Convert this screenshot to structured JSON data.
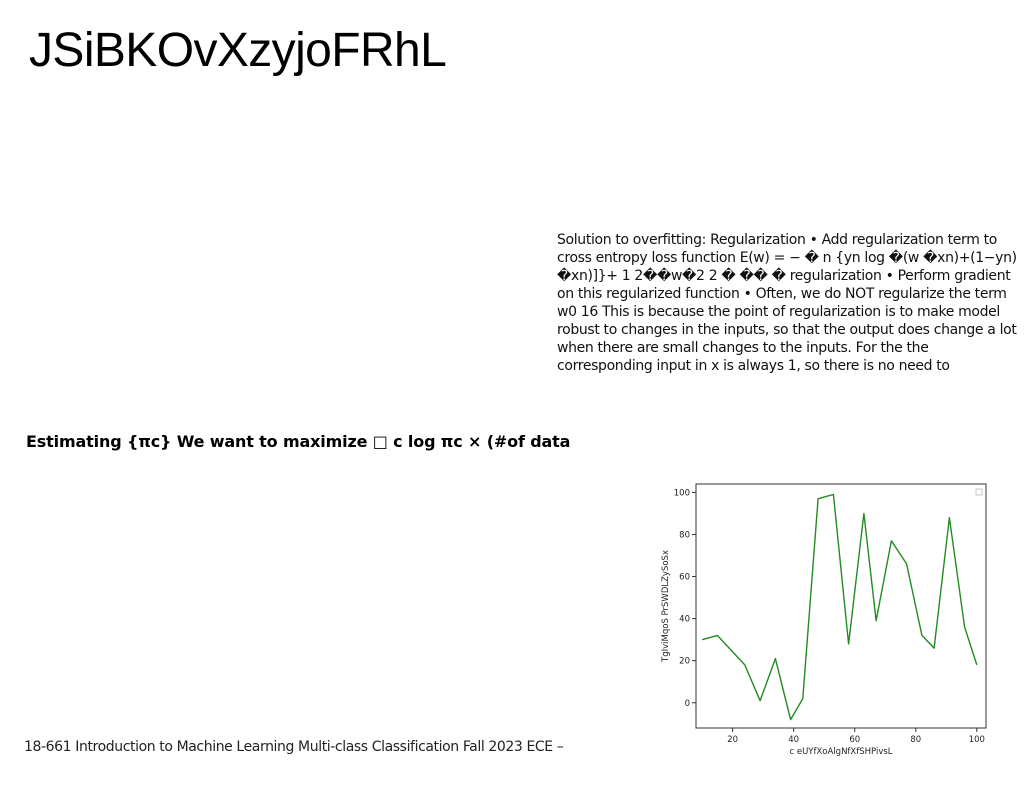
{
  "slide": {
    "title": "JSiBKOvXzyjoFRhL",
    "body_text": "Solution to overfitting: Regularization • Add regularization term to cross entropy loss function E(w) = − � n {yn log �(w �xn)+(1−yn) �xn)]}+ 1 2��w�2 2 � �� � regularization • Perform gradient on this regularized function • Often, we do NOT regularize the term w0 16 This is because the point of regularization is to make model robust to changes in the inputs, so that the output does change a lot when there are small changes to the inputs. For the the corresponding input in x is always 1, so there is no need to",
    "section_heading": "Estimating {πc} We want to maximize □ c log πc × (#of data",
    "footer": "18-661 Introduction to Machine Learning Multi-class Classification Fall 2023 ECE –"
  },
  "chart_data": {
    "type": "line",
    "title": "",
    "xlabel": "c eUYfXoAlgNfXfSHPivsL",
    "ylabel": "TgIviMqoS PrSWDLZySoSx",
    "x": [
      10,
      15,
      24,
      29,
      34,
      39,
      43,
      48,
      53,
      58,
      63,
      67,
      72,
      77,
      82,
      86,
      91,
      96,
      100
    ],
    "series": [
      {
        "values": [
          30,
          32,
          18,
          1,
          21,
          -8,
          2,
          97,
          99,
          28,
          90,
          39,
          77,
          66,
          32,
          26,
          88,
          36,
          18
        ],
        "color": "#228b22"
      }
    ],
    "xlim": [
      8,
      103
    ],
    "ylim": [
      -12,
      104
    ],
    "xticks": [
      20,
      40,
      60,
      80,
      100
    ],
    "yticks": [
      0,
      20,
      40,
      60,
      80,
      100
    ],
    "grid": false,
    "legend": "top-right, empty box"
  }
}
